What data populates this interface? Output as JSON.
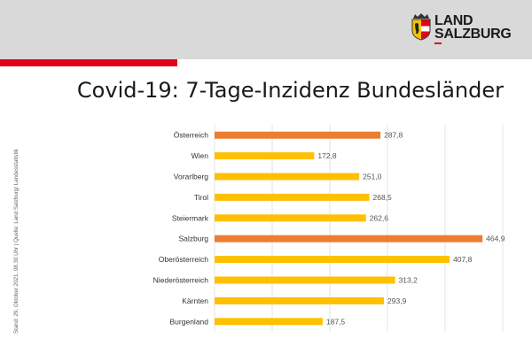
{
  "header": {
    "logo_line1": "LAND",
    "logo_line2": "SALZBURG"
  },
  "source_note": "Stand: 29. Oktober  2021, 08.30 Uhr  |  Quelle: Land Salzburg/ Landesstatistik",
  "colors": {
    "highlight": "#ed7d31",
    "default": "#ffc000",
    "header_bg": "#d9d9d9",
    "brand_red": "#e2001a"
  },
  "chart_data": {
    "type": "bar",
    "orientation": "horizontal",
    "title": "Covid-19: 7-Tage-Inzidenz Bundesländer",
    "xlabel": "",
    "ylabel": "",
    "xlim": [
      0,
      500
    ],
    "grid": true,
    "categories": [
      "Österreich",
      "Wien",
      "Vorarlberg",
      "Tirol",
      "Steiermark",
      "Salzburg",
      "Oberösterreich",
      "Niederösterreich",
      "Kärnten",
      "Burgenland"
    ],
    "values": [
      287.8,
      172.8,
      251.0,
      268.5,
      262.6,
      464.9,
      407.8,
      313.2,
      293.9,
      187.5
    ],
    "value_labels": [
      "287,8",
      "172,8",
      "251,0",
      "268,5",
      "262,6",
      "464,9",
      "407,8",
      "313,2",
      "293,9",
      "187,5"
    ],
    "highlight": [
      true,
      false,
      false,
      false,
      false,
      true,
      false,
      false,
      false,
      false
    ]
  }
}
